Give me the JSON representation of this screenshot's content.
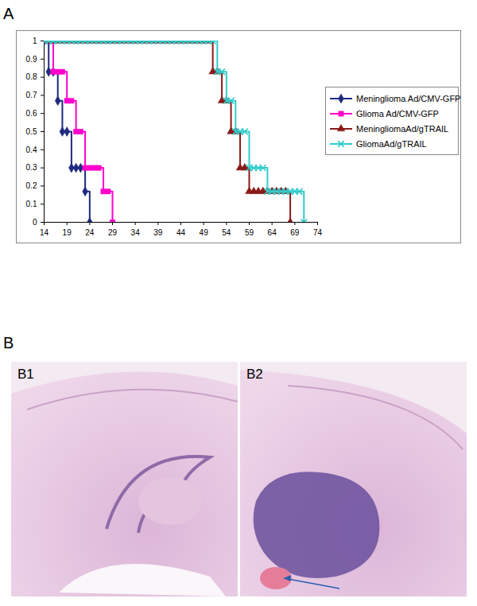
{
  "chart_data": {
    "type": "line",
    "legend": "right",
    "tick_labels": true,
    "grid": false,
    "xlim": [
      14,
      74
    ],
    "xticks": [
      14,
      19,
      24,
      29,
      34,
      39,
      44,
      49,
      54,
      59,
      64,
      69,
      74
    ],
    "ylim": [
      0,
      1
    ],
    "yticks": [
      0,
      0.1,
      0.2,
      0.3,
      0.4,
      0.5,
      0.6,
      0.7,
      0.8,
      0.9,
      1
    ],
    "series": [
      {
        "name": "Meninglioma Ad/CMV-GFP",
        "color": "#1f2a80",
        "marker": "diamond",
        "x": [
          14,
          15,
          16,
          17,
          18,
          19,
          20,
          21,
          22,
          23,
          24
        ],
        "values": [
          1,
          0.83,
          0.83,
          0.67,
          0.5,
          0.5,
          0.3,
          0.3,
          0.3,
          0.17,
          0
        ]
      },
      {
        "name": "Glioma Ad/CMV-GFP",
        "color": "#ff00cc",
        "marker": "square",
        "x": [
          14,
          15,
          16,
          17,
          18,
          19,
          20,
          21,
          22,
          23,
          24,
          25,
          26,
          27,
          28,
          29
        ],
        "values": [
          1,
          1,
          0.83,
          0.83,
          0.83,
          0.67,
          0.67,
          0.5,
          0.5,
          0.3,
          0.3,
          0.3,
          0.3,
          0.17,
          0.17,
          0
        ]
      },
      {
        "name": "MeningliomaAd/gTRAIL",
        "color": "#8b1a1a",
        "marker": "triangle",
        "x": [
          14,
          15,
          16,
          17,
          18,
          19,
          20,
          21,
          22,
          23,
          24,
          25,
          26,
          27,
          28,
          29,
          30,
          31,
          32,
          33,
          34,
          35,
          36,
          37,
          38,
          39,
          40,
          41,
          42,
          43,
          44,
          45,
          46,
          47,
          48,
          49,
          50,
          51,
          52,
          53,
          54,
          55,
          56,
          57,
          58,
          59,
          60,
          61,
          62,
          63,
          64,
          65,
          66,
          67,
          68
        ],
        "values": [
          1,
          1,
          1,
          1,
          1,
          1,
          1,
          1,
          1,
          1,
          1,
          1,
          1,
          1,
          1,
          1,
          1,
          1,
          1,
          1,
          1,
          1,
          1,
          1,
          1,
          1,
          1,
          1,
          1,
          1,
          1,
          1,
          1,
          1,
          1,
          1,
          1,
          0.83,
          0.83,
          0.67,
          0.67,
          0.5,
          0.5,
          0.3,
          0.3,
          0.17,
          0.17,
          0.17,
          0.17,
          0.17,
          0.17,
          0.17,
          0.17,
          0.17,
          0
        ]
      },
      {
        "name": "GliomaAd/gTRAIL",
        "color": "#33cccc",
        "marker": "times",
        "x": [
          14,
          15,
          16,
          17,
          18,
          19,
          20,
          21,
          22,
          23,
          24,
          25,
          26,
          27,
          28,
          29,
          30,
          31,
          32,
          33,
          34,
          35,
          36,
          37,
          38,
          39,
          40,
          41,
          42,
          43,
          44,
          45,
          46,
          47,
          48,
          49,
          50,
          51,
          52,
          53,
          54,
          55,
          56,
          57,
          58,
          59,
          60,
          61,
          62,
          63,
          64,
          65,
          66,
          67,
          68,
          69,
          70,
          71
        ],
        "values": [
          1,
          1,
          1,
          1,
          1,
          1,
          1,
          1,
          1,
          1,
          1,
          1,
          1,
          1,
          1,
          1,
          1,
          1,
          1,
          1,
          1,
          1,
          1,
          1,
          1,
          1,
          1,
          1,
          1,
          1,
          1,
          1,
          1,
          1,
          1,
          1,
          1,
          1,
          0.83,
          0.83,
          0.67,
          0.67,
          0.5,
          0.5,
          0.5,
          0.3,
          0.3,
          0.3,
          0.3,
          0.17,
          0.17,
          0.17,
          0.17,
          0.17,
          0.17,
          0.17,
          0.17,
          0
        ]
      }
    ]
  },
  "panel_a": {
    "label": "A"
  },
  "panel_b": {
    "label": "B",
    "images": [
      "B1",
      "B2"
    ]
  }
}
